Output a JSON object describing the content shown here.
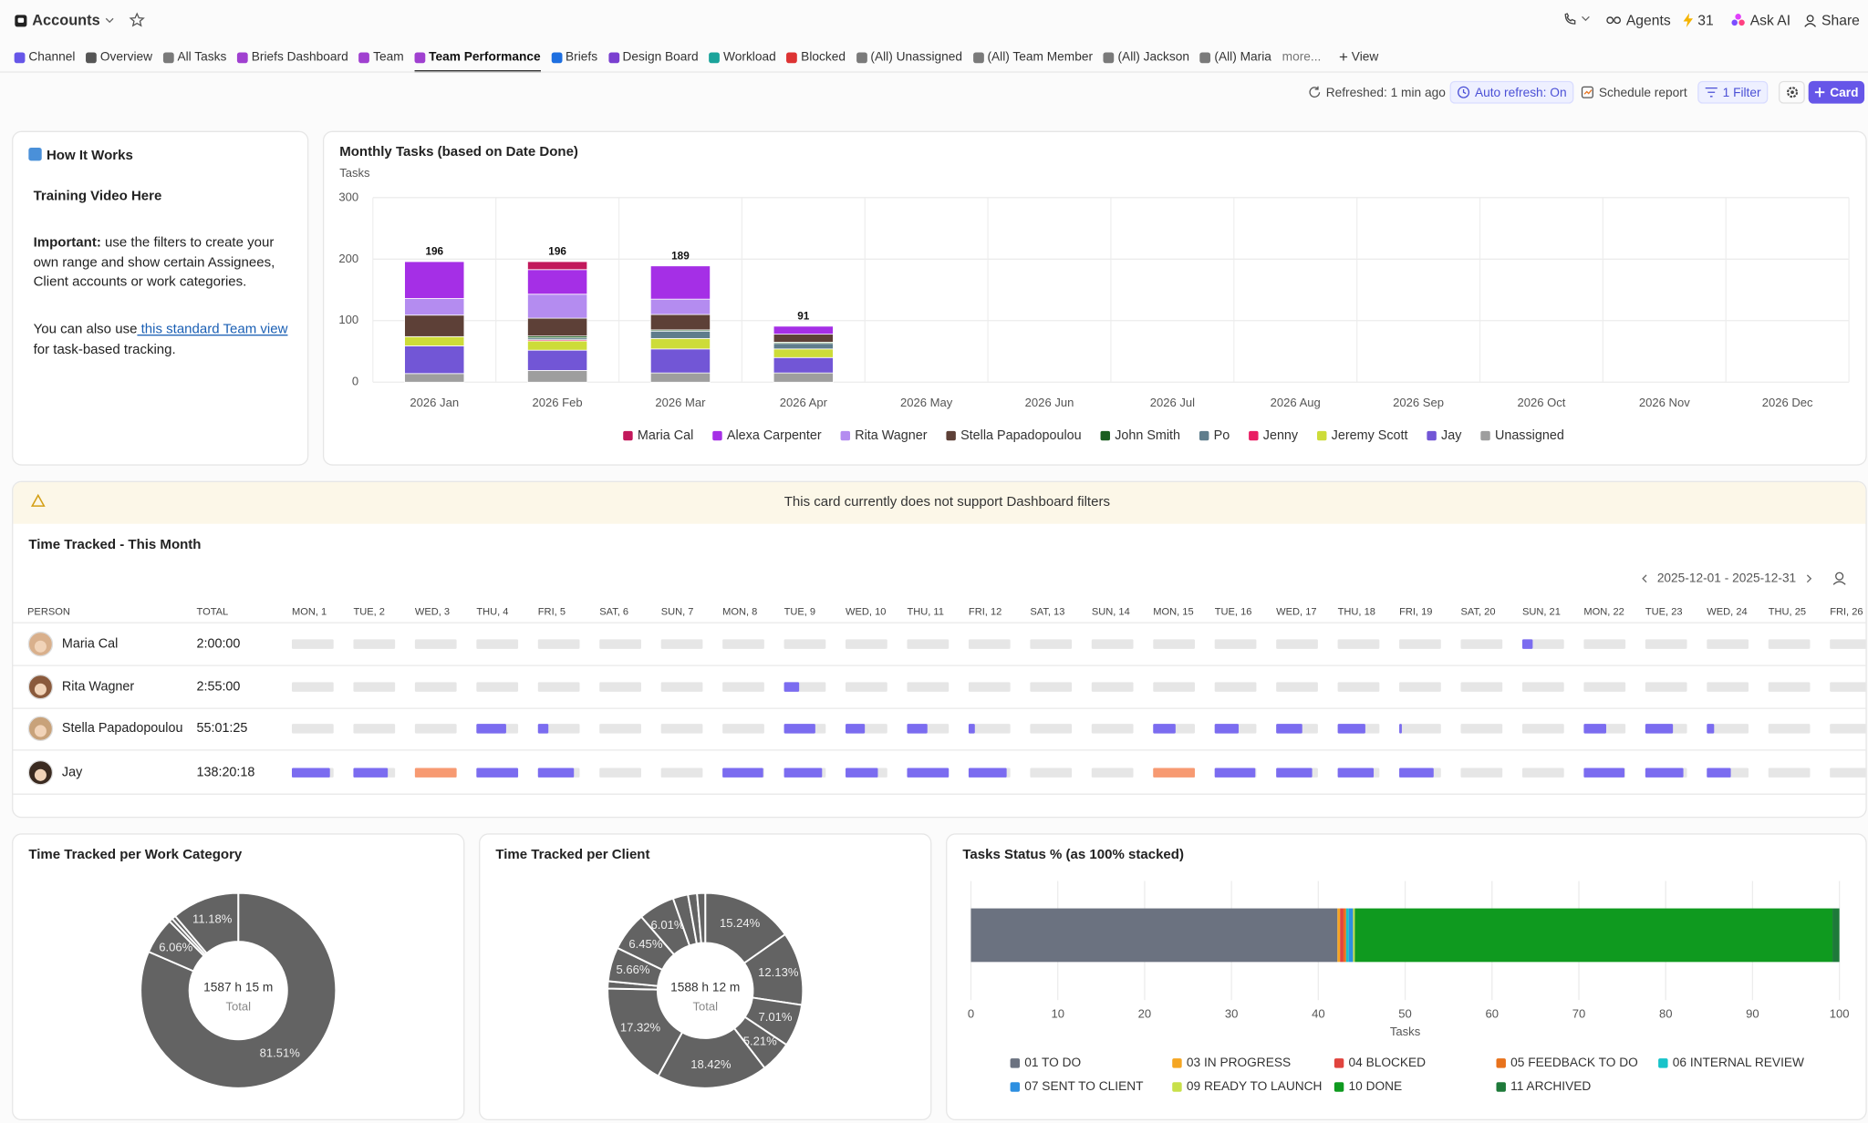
{
  "header": {
    "workspace": "Accounts",
    "agents": "Agents",
    "credits": "31",
    "ask_ai": "Ask AI",
    "share": "Share"
  },
  "tabs": [
    "Channel",
    "Overview",
    "All Tasks",
    "Briefs Dashboard",
    "Team",
    "Team Performance",
    "Briefs",
    "Design Board",
    "Workload",
    "Blocked",
    "(All) Unassigned",
    "(All) Team Member",
    "(All) Jackson",
    "(All) Maria",
    "more...",
    "View"
  ],
  "toolbar": {
    "refreshed": "Refreshed: 1 min ago",
    "auto_refresh": "Auto refresh: On",
    "schedule": "Schedule report",
    "filter": "1 Filter",
    "card": "Card"
  },
  "how_it_works": {
    "title": "How It Works",
    "heading": "Training Video Here",
    "important_label": "Important:",
    "important_text": " use the filters to create your own range and show certain Assignees, Client accounts or work categories.",
    "also_text": "You can also use",
    "link": " this standard Team view",
    "after_link": "for task-based tracking."
  },
  "banner": "This card currently does not support Dashboard filters",
  "time_tracked": {
    "title": "Time Tracked - This Month",
    "range": "2025-12-01 - 2025-12-31",
    "columns": [
      "PERSON",
      "TOTAL",
      "MON, 1",
      "TUE, 2",
      "WED, 3",
      "THU, 4",
      "FRI, 5",
      "SAT, 6",
      "SUN, 7",
      "MON, 8",
      "TUE, 9",
      "WED, 10",
      "THU, 11",
      "FRI, 12",
      "SAT, 13",
      "SUN, 14",
      "MON, 15",
      "TUE, 16",
      "WED, 17",
      "THU, 18",
      "FRI, 19",
      "SAT, 20",
      "SUN, 21",
      "MON, 22",
      "TUE, 23",
      "WED, 24",
      "THU, 25",
      "FRI, 26"
    ],
    "bar_color": "#7b6cf0",
    "over_color": "#f79a72",
    "rows": [
      {
        "person": "Maria Cal",
        "total": "2:00:00",
        "hours": [
          null,
          null,
          null,
          null,
          null,
          null,
          null,
          null,
          null,
          null,
          null,
          null,
          null,
          null,
          null,
          null,
          null,
          null,
          null,
          null,
          2,
          null,
          null,
          null,
          null,
          null
        ]
      },
      {
        "person": "Rita Wagner",
        "total": "2:55:00",
        "hours": [
          null,
          null,
          null,
          null,
          null,
          null,
          null,
          null,
          2.9,
          null,
          null,
          null,
          null,
          null,
          null,
          null,
          null,
          null,
          null,
          null,
          null,
          null,
          null,
          null,
          null,
          null
        ]
      },
      {
        "person": "Stella Papadopoulou",
        "total": "55:01:25",
        "hours": [
          null,
          null,
          null,
          5.7,
          2,
          null,
          null,
          null,
          6,
          3.7,
          3.9,
          1.2,
          null,
          null,
          4.3,
          4.6,
          5,
          5.3,
          0.5,
          null,
          null,
          4.3,
          5.3,
          1.4,
          null,
          null
        ]
      },
      {
        "person": "Jay",
        "total": "138:20:18",
        "hours": [
          7.3,
          6.6,
          9,
          8,
          6.9,
          null,
          null,
          7.8,
          7.3,
          6.2,
          8,
          7.3,
          null,
          null,
          9.5,
          7.8,
          6.9,
          6.9,
          6.6,
          null,
          null,
          7.8,
          7.3,
          4.6,
          null,
          null
        ]
      }
    ]
  },
  "chart_data": [
    {
      "type": "bar",
      "stacked": true,
      "title": "Monthly Tasks (based on Date Done)",
      "y_label": "Tasks",
      "categories": [
        "2026 Jan",
        "2026 Feb",
        "2026 Mar",
        "2026 Apr",
        "2026 May",
        "2026 Jun",
        "2026 Jul",
        "2026 Aug",
        "2026 Sep",
        "2026 Oct",
        "2026 Nov",
        "2026 Dec"
      ],
      "series": [
        {
          "name": "Maria Cal",
          "color": "#c2185b",
          "values": [
            0,
            13,
            0,
            0,
            0,
            0,
            0,
            0,
            0,
            0,
            0,
            0
          ]
        },
        {
          "name": "Alexa Carpenter",
          "color": "#a52fe6",
          "values": [
            60,
            40,
            54,
            13,
            0,
            0,
            0,
            0,
            0,
            0,
            0,
            0
          ]
        },
        {
          "name": "Rita Wagner",
          "color": "#b48cf0",
          "values": [
            27,
            39,
            25,
            0,
            0,
            0,
            0,
            0,
            0,
            0,
            0,
            0
          ]
        },
        {
          "name": "Stella Papadopoulou",
          "color": "#5d4037",
          "values": [
            35,
            29,
            25,
            13,
            0,
            0,
            0,
            0,
            0,
            0,
            0,
            0
          ]
        },
        {
          "name": "John Smith",
          "color": "#1b5e20",
          "values": [
            0,
            3,
            2,
            2,
            0,
            0,
            0,
            0,
            0,
            0,
            0,
            0
          ]
        },
        {
          "name": "Po",
          "color": "#5f7d8c",
          "values": [
            0,
            3,
            12,
            9,
            0,
            0,
            0,
            0,
            0,
            0,
            0,
            0
          ]
        },
        {
          "name": "Jenny",
          "color": "#e91e63",
          "values": [
            0,
            2,
            0,
            0,
            0,
            0,
            0,
            0,
            0,
            0,
            0,
            0
          ]
        },
        {
          "name": "Jeremy Scott",
          "color": "#cddc39",
          "values": [
            15,
            15,
            17,
            14,
            0,
            0,
            0,
            0,
            0,
            0,
            0,
            0
          ]
        },
        {
          "name": "Jay",
          "color": "#7256d6",
          "values": [
            45,
            33,
            39,
            25,
            0,
            0,
            0,
            0,
            0,
            0,
            0,
            0
          ]
        },
        {
          "name": "Unassigned",
          "color": "#9e9e9e",
          "values": [
            14,
            19,
            15,
            15,
            0,
            0,
            0,
            0,
            0,
            0,
            0,
            0
          ]
        }
      ],
      "total_labels": [
        196,
        196,
        189,
        91,
        null,
        null,
        null,
        null,
        null,
        null,
        null,
        null
      ],
      "ylim": [
        0,
        300
      ],
      "yticks": [
        0,
        100,
        200,
        300
      ],
      "grid": true,
      "legend": "bottom"
    },
    {
      "type": "donut",
      "title": "Time Tracked per Work Category",
      "center_label": "1587 h 15 m",
      "center_sublabel": "Total",
      "values": [
        81.51,
        6.06,
        0.6,
        0.65,
        11.18
      ],
      "value_labels": [
        "81.51%",
        "6.06%",
        null,
        null,
        "11.18%"
      ],
      "color": "#636363"
    },
    {
      "type": "donut",
      "title": "Time Tracked per Client",
      "center_label": "1588 h 12 m",
      "center_sublabel": "Total",
      "values": [
        15.24,
        12.13,
        7.01,
        5.21,
        18.42,
        17.32,
        1.2,
        5.66,
        6.45,
        6.01,
        2.5,
        1.5,
        1.35
      ],
      "value_labels": [
        "15.24%",
        "12.13%",
        "7.01%",
        "5.21%",
        "18.42%",
        "17.32%",
        null,
        "5.66%",
        "6.45%",
        "6.01%",
        null,
        null,
        null
      ],
      "color": "#636363"
    },
    {
      "type": "hbar",
      "stacked": true,
      "title": "Tasks Status % (as 100% stacked)",
      "x_label": "Tasks",
      "series": [
        {
          "name": "01 TO DO",
          "color": "#6b7280",
          "values": [
            42.2
          ]
        },
        {
          "name": "03 IN PROGRESS",
          "color": "#f5a623",
          "values": [
            0.3
          ]
        },
        {
          "name": "04 BLOCKED",
          "color": "#e0443e",
          "values": [
            0.4
          ]
        },
        {
          "name": "05 FEEDBACK TO DO",
          "color": "#e8721c",
          "values": [
            0.3
          ]
        },
        {
          "name": "06 INTERNAL REVIEW",
          "color": "#17c3c9",
          "values": [
            0.3
          ]
        },
        {
          "name": "07 SENT TO CLIENT",
          "color": "#2d8fe0",
          "values": [
            0.5
          ]
        },
        {
          "name": "09 READY TO LAUNCH",
          "color": "#c8e04a",
          "values": [
            0.2
          ]
        },
        {
          "name": "10 DONE",
          "color": "#0f9a1f",
          "values": [
            55.0
          ]
        },
        {
          "name": "11 ARCHIVED",
          "color": "#1e7a3a",
          "values": [
            0.8
          ]
        }
      ],
      "xlim": [
        0,
        100
      ],
      "xticks": [
        0,
        10,
        20,
        30,
        40,
        50,
        60,
        70,
        80,
        90,
        100
      ],
      "grid": true,
      "legend": "bottom"
    }
  ]
}
